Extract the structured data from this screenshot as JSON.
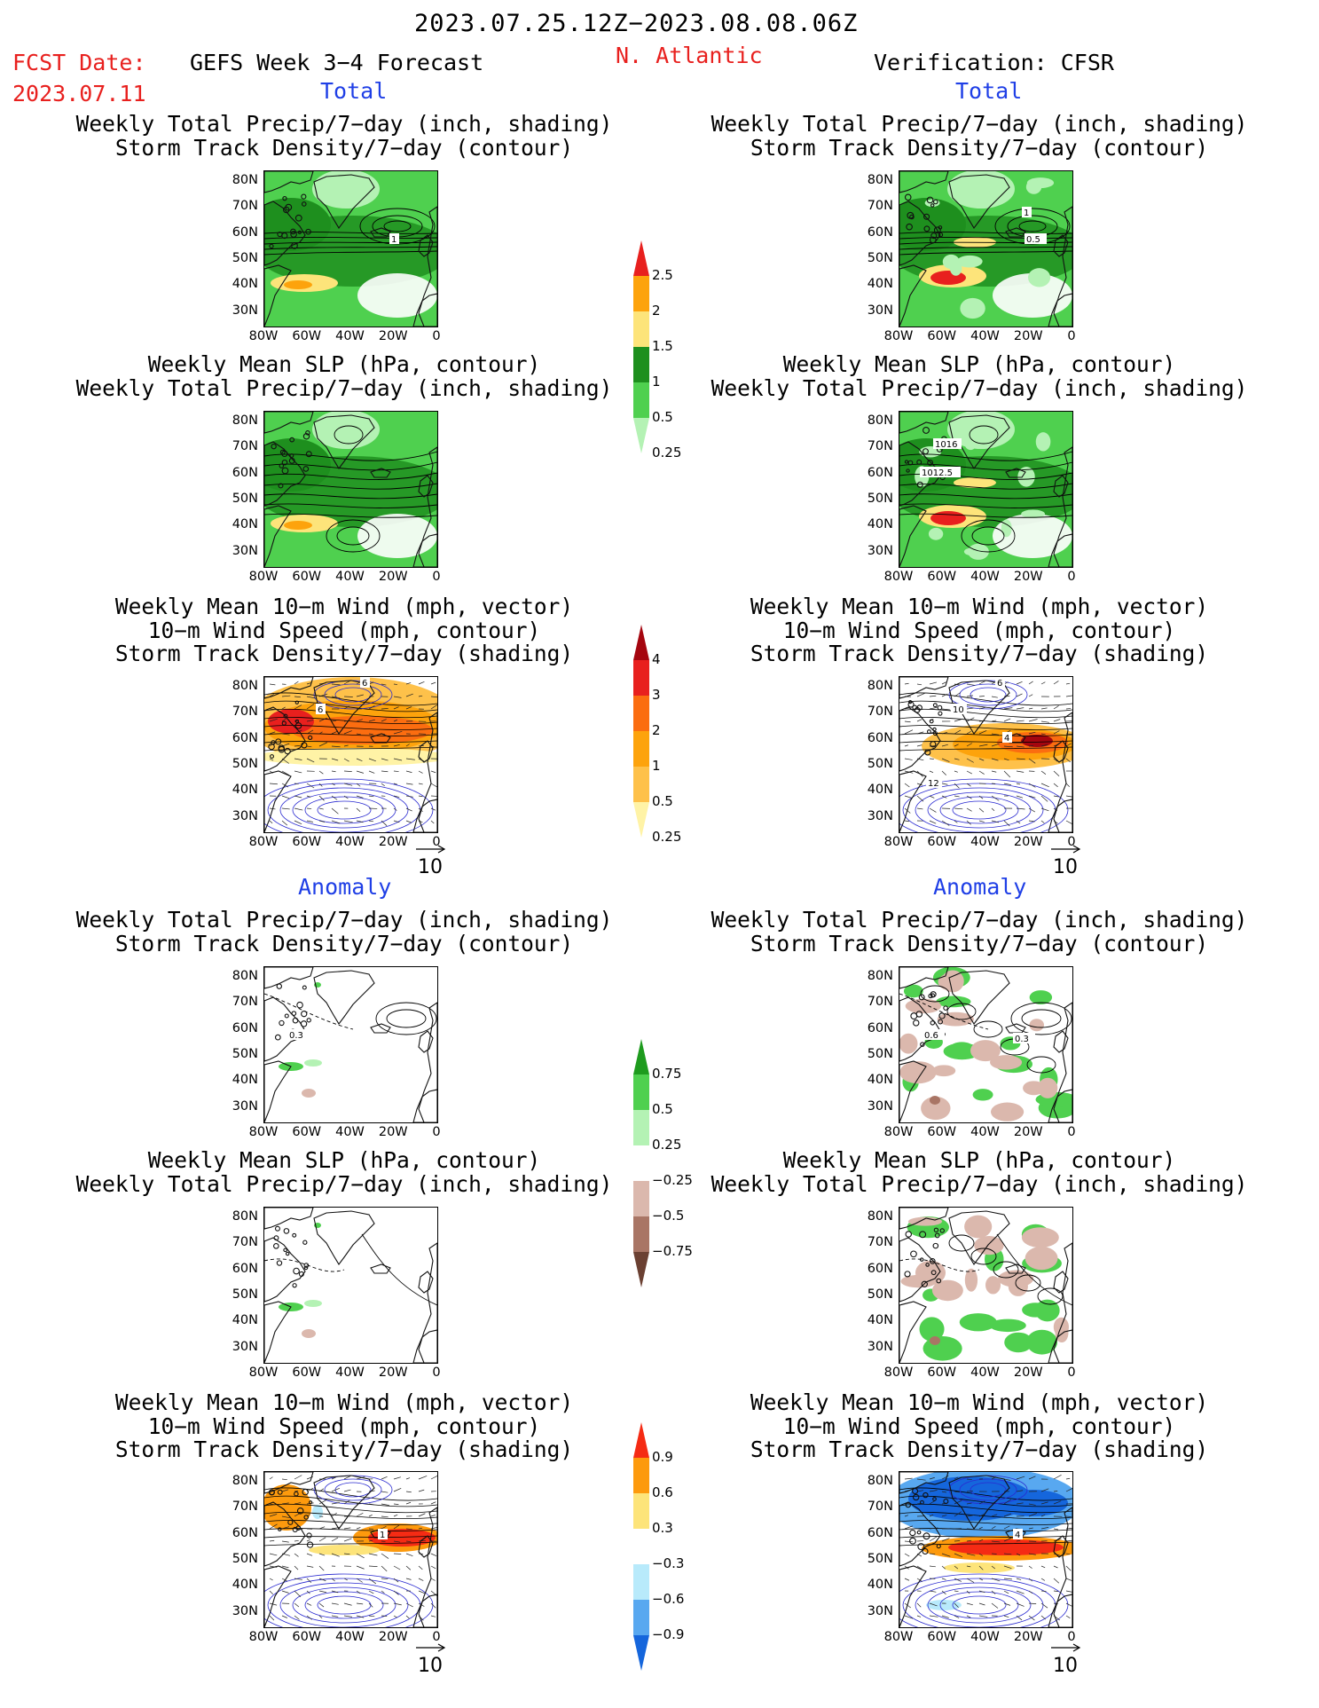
{
  "header": {
    "period": "2023.07.25.12Z−2023.08.08.06Z",
    "fcst_label": "FCST Date:",
    "fcst_date": "2023.07.11",
    "model": "GEFS Week 3−4 Forecast",
    "region": "N. Atlantic",
    "verification": "Verification: CFSR"
  },
  "sections": {
    "total_label": "Total",
    "anomaly_label": "Anomaly"
  },
  "titles": {
    "precip_storm": [
      "Weekly Total Precip/7−day (inch, shading)",
      "Storm Track Density/7−day (contour)"
    ],
    "slp_precip": [
      "Weekly Mean SLP (hPa, contour)",
      "Weekly Total Precip/7−day (inch, shading)"
    ],
    "wind": [
      "Weekly Mean 10−m Wind (mph, vector)",
      "10−m Wind Speed (mph, contour)",
      "Storm Track Density/7−day (shading)"
    ]
  },
  "axes": {
    "lat": [
      "80N",
      "70N",
      "60N",
      "50N",
      "40N",
      "30N"
    ],
    "lon": [
      "80W",
      "60W",
      "40W",
      "20W",
      "0"
    ]
  },
  "vector_ref": "10",
  "colorbars": {
    "precip_total": {
      "labels": [
        "2.5",
        "2",
        "1.5",
        "1",
        "0.5",
        "0.25"
      ],
      "colors": [
        "#e8201e",
        "#fda30c",
        "#fde47a",
        "#1e8f1e",
        "#4fd04f",
        "#b4f2b4"
      ]
    },
    "storm_total": {
      "labels": [
        "4",
        "3",
        "2",
        "1",
        "0.5",
        "0.25"
      ],
      "colors": [
        "#a5060f",
        "#e8201e",
        "#fb6d10",
        "#fda30c",
        "#fec14a",
        "#fff3a6"
      ]
    },
    "precip_anom": {
      "labels": [
        "0.75",
        "0.5",
        "0.25",
        "−0.25",
        "−0.5",
        "−0.75"
      ],
      "colors": [
        "#1e9b1e",
        "#4fd04f",
        "#b4f2b4",
        "#ffffff",
        "#dbb8ad",
        "#a97565",
        "#6b4032"
      ]
    },
    "storm_anom": {
      "labels": [
        "0.9",
        "0.6",
        "0.3",
        "−0.3",
        "−0.6",
        "−0.9"
      ],
      "colors": [
        "#f52b14",
        "#fd9a0d",
        "#fde47a",
        "#ffffff",
        "#b8eafb",
        "#58a8f0",
        "#1566dc"
      ]
    }
  },
  "contour_labels": {
    "fc_total_storm": [
      "1"
    ],
    "ver_total_storm": [
      "0.5",
      "1"
    ],
    "ver_total_slp": [
      "1016",
      "1012.5"
    ],
    "fc_total_wind": [
      "6",
      "6"
    ],
    "ver_total_wind": [
      "6",
      "10",
      "4",
      "12"
    ],
    "fc_anom_storm": [
      "0.3"
    ],
    "ver_anom_storm": [
      "0.6",
      "0.3"
    ],
    "fc_anom_wind": [
      "1"
    ],
    "ver_anom_wind": [
      "4"
    ]
  }
}
